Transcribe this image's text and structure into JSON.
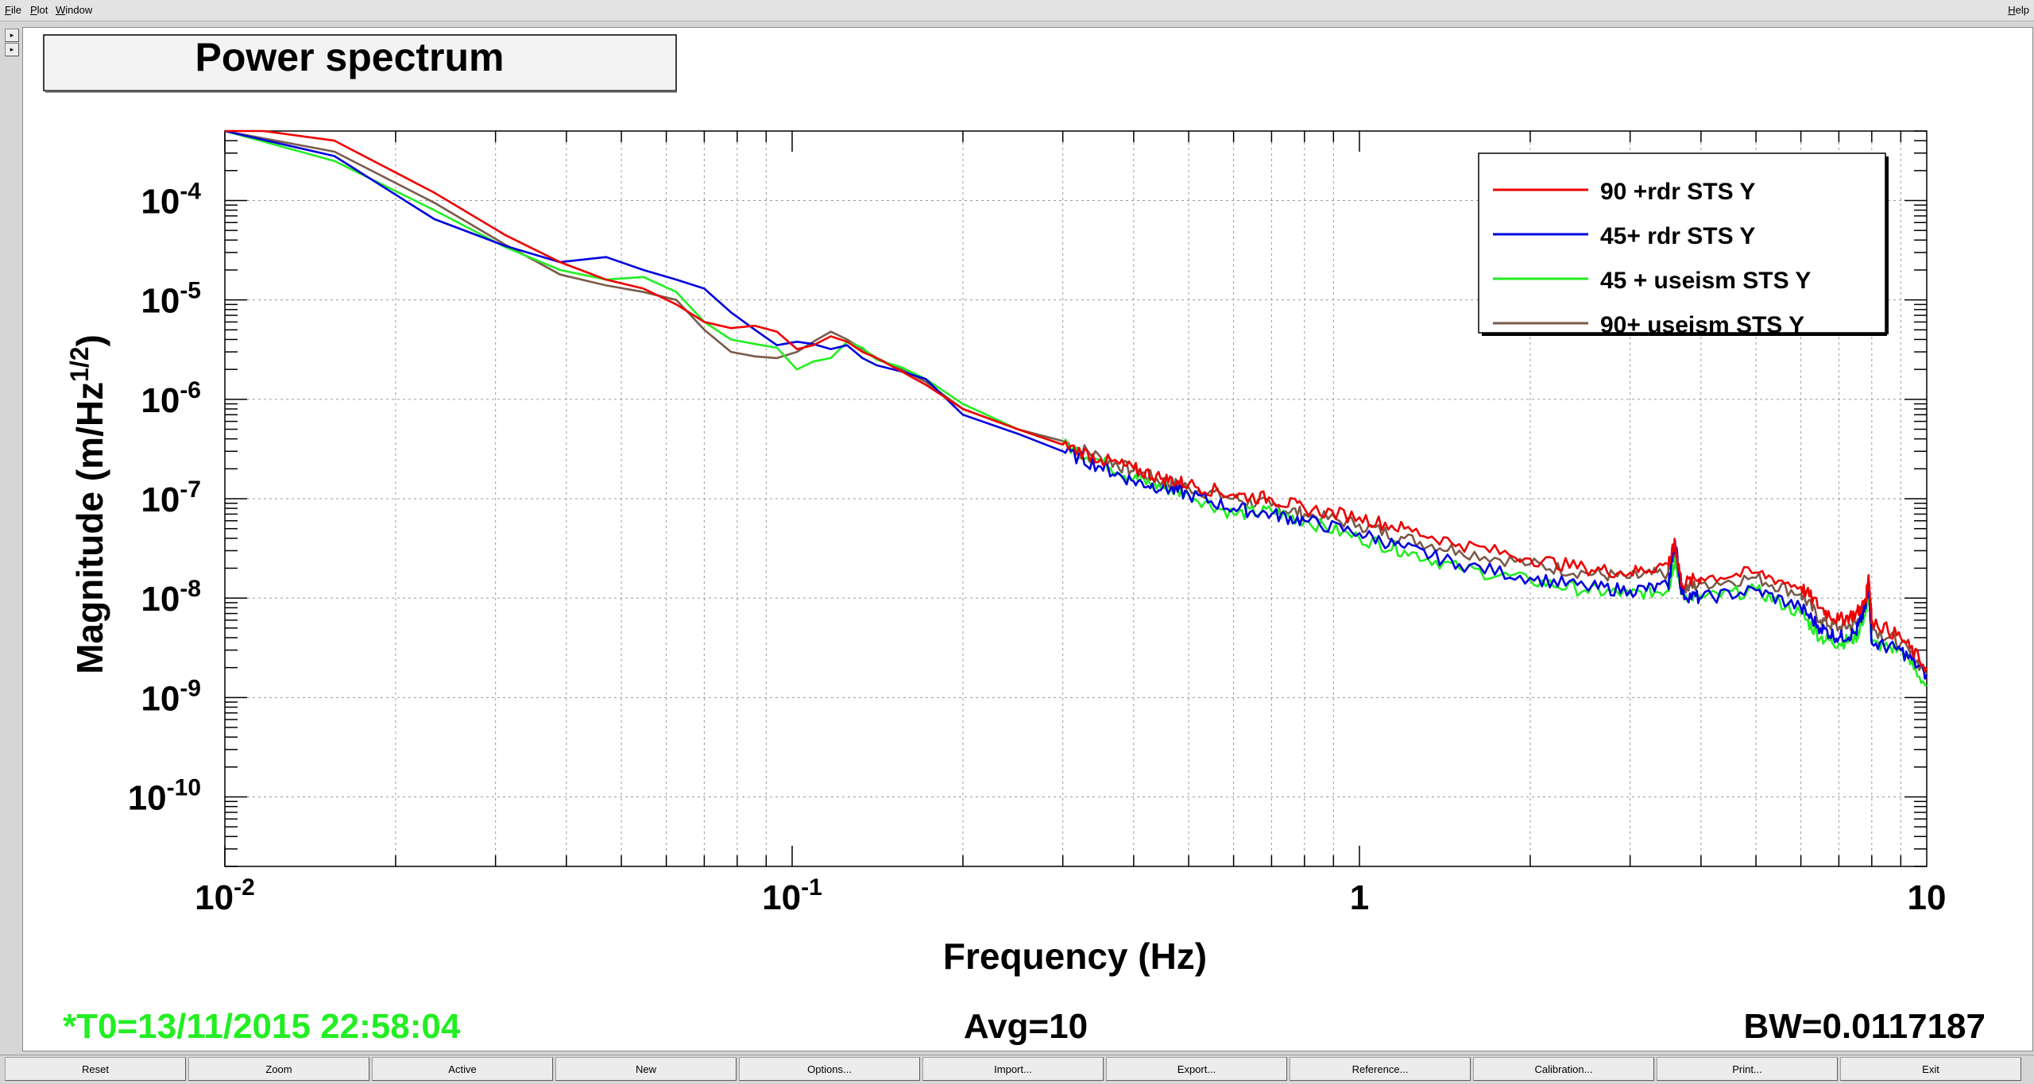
{
  "menubar": {
    "items": [
      "File",
      "Plot",
      "Window"
    ],
    "help": "Help"
  },
  "side_buttons": [
    "▸",
    "▸"
  ],
  "chart_title": "Power spectrum",
  "status": {
    "t0": "*T0=13/11/2015 22:58:04",
    "avg": "Avg=10",
    "bw": "BW=0.0117187"
  },
  "colors": {
    "status_green": "#22ee22",
    "series_red": "#ee0000",
    "series_blue": "#0000dd",
    "series_green": "#22ee22",
    "series_brown": "#7a5a4a"
  },
  "toolbar": {
    "buttons": [
      "Reset",
      "Zoom",
      "Active",
      "New",
      "Options...",
      "Import...",
      "Export...",
      "Reference...",
      "Calibration...",
      "Print...",
      "Exit"
    ]
  },
  "chart_data": {
    "type": "line",
    "title": "Power spectrum",
    "xlabel": "Frequency (Hz)",
    "ylabel_main": "Magnitude (m/Hz",
    "ylabel_sup": "1/2",
    "ylabel_close": ")",
    "x_scale": "log",
    "y_scale": "log",
    "xlim": [
      0.01,
      10
    ],
    "ylim": [
      2e-11,
      0.0005
    ],
    "x_ticks": [
      {
        "value": 0.01,
        "base": "10",
        "exp": "-2"
      },
      {
        "value": 0.1,
        "base": "10",
        "exp": "-1"
      },
      {
        "value": 1,
        "base": "1",
        "exp": ""
      },
      {
        "value": 10,
        "base": "10",
        "exp": ""
      }
    ],
    "y_ticks": [
      {
        "value": 0.0001,
        "base": "10",
        "exp": "-4"
      },
      {
        "value": 1e-05,
        "base": "10",
        "exp": "-5"
      },
      {
        "value": 1e-06,
        "base": "10",
        "exp": "-6"
      },
      {
        "value": 1e-07,
        "base": "10",
        "exp": "-7"
      },
      {
        "value": 1e-08,
        "base": "10",
        "exp": "-8"
      },
      {
        "value": 1e-09,
        "base": "10",
        "exp": "-9"
      },
      {
        "value": 1e-10,
        "base": "10",
        "exp": "-10"
      }
    ],
    "grid": true,
    "legend_position": "top-right",
    "series": [
      {
        "name": "90 +rdr STS Y",
        "color": "#ee0000",
        "x": [
          0.01,
          0.0117,
          0.0156,
          0.0234,
          0.0312,
          0.039,
          0.047,
          0.0547,
          0.0625,
          0.07,
          0.078,
          0.086,
          0.094,
          0.102,
          0.109,
          0.117,
          0.125,
          0.133,
          0.141,
          0.156,
          0.172,
          0.2,
          0.25,
          0.3,
          0.35,
          0.4,
          0.45,
          0.5,
          0.6,
          0.7,
          0.8,
          1,
          1.2,
          1.5,
          2,
          2.5,
          3,
          3.5,
          3.6,
          3.7,
          4,
          5,
          6,
          6.5,
          7,
          7.5,
          7.8,
          7.9,
          8,
          9,
          10
        ],
        "y": [
          0.0005,
          0.00052,
          0.0004,
          0.00012,
          4.5e-05,
          2.4e-05,
          1.6e-05,
          1.3e-05,
          9e-06,
          6e-06,
          5.2e-06,
          5.5e-06,
          4.8e-06,
          3.2e-06,
          3.5e-06,
          4.3e-06,
          3.8e-06,
          3e-06,
          2.6e-06,
          1.9e-06,
          1.4e-06,
          8e-07,
          5e-07,
          3.5e-07,
          2.5e-07,
          2e-07,
          1.6e-07,
          1.4e-07,
          1.1e-07,
          1e-07,
          8e-08,
          6.5e-08,
          5e-08,
          3.5e-08,
          2.5e-08,
          2e-08,
          1.8e-08,
          2.2e-08,
          3.5e-08,
          1.4e-08,
          1.6e-08,
          1.8e-08,
          1.3e-08,
          8e-09,
          6e-09,
          7e-09,
          9e-09,
          1.7e-08,
          6e-09,
          4e-09,
          2e-09
        ]
      },
      {
        "name": "45+ rdr STS Y",
        "color": "#0000dd",
        "x": [
          0.01,
          0.0156,
          0.0234,
          0.0312,
          0.039,
          0.047,
          0.0547,
          0.0625,
          0.07,
          0.078,
          0.086,
          0.094,
          0.102,
          0.109,
          0.117,
          0.125,
          0.133,
          0.141,
          0.156,
          0.172,
          0.2,
          0.25,
          0.3,
          0.35,
          0.4,
          0.45,
          0.5,
          0.6,
          0.7,
          0.8,
          1,
          1.2,
          1.5,
          2,
          2.5,
          3,
          3.5,
          3.6,
          3.7,
          4,
          5,
          6,
          6.5,
          7,
          7.5,
          7.8,
          7.9,
          8,
          9,
          10
        ],
        "y": [
          0.0005,
          0.00028,
          6.5e-05,
          3.5e-05,
          2.4e-05,
          2.7e-05,
          2e-05,
          1.6e-05,
          1.3e-05,
          7.5e-06,
          5e-06,
          3.5e-06,
          3.8e-06,
          3.6e-06,
          3.2e-06,
          3.5e-06,
          2.6e-06,
          2.2e-06,
          1.9e-06,
          1.6e-06,
          7e-07,
          4.5e-07,
          3e-07,
          2.1e-07,
          1.5e-07,
          1.3e-07,
          1.1e-07,
          8e-08,
          7e-08,
          6e-08,
          4.5e-08,
          3.2e-08,
          2.2e-08,
          1.6e-08,
          1.3e-08,
          1.2e-08,
          1.3e-08,
          3.8e-08,
          1.1e-08,
          1e-08,
          1.2e-08,
          8e-09,
          5e-09,
          4e-09,
          4.5e-09,
          8e-09,
          1.5e-08,
          3.5e-09,
          3e-09,
          1.7e-09
        ]
      },
      {
        "name": "45 + useism STS Y",
        "color": "#22ee22",
        "x": [
          0.01,
          0.0156,
          0.0234,
          0.0312,
          0.039,
          0.047,
          0.0547,
          0.0625,
          0.07,
          0.078,
          0.086,
          0.094,
          0.102,
          0.109,
          0.117,
          0.125,
          0.133,
          0.141,
          0.156,
          0.172,
          0.2,
          0.25,
          0.3,
          0.35,
          0.4,
          0.45,
          0.5,
          0.6,
          0.7,
          0.8,
          1,
          1.2,
          1.5,
          2,
          2.5,
          3,
          3.5,
          3.6,
          3.7,
          4,
          5,
          6,
          6.5,
          7,
          7.5,
          7.8,
          7.9,
          8,
          9,
          10
        ],
        "y": [
          0.0005,
          0.00025,
          8e-05,
          3.4e-05,
          2e-05,
          1.6e-05,
          1.7e-05,
          1.2e-05,
          6e-06,
          4e-06,
          3.6e-06,
          3.3e-06,
          2e-06,
          2.4e-06,
          2.6e-06,
          3.8e-06,
          3.3e-06,
          2.5e-06,
          2.1e-06,
          1.6e-06,
          9e-07,
          5e-07,
          3.5e-07,
          2.4e-07,
          1.6e-07,
          1.3e-07,
          1.1e-07,
          7e-08,
          7.5e-08,
          6e-08,
          4e-08,
          3e-08,
          2e-08,
          1.5e-08,
          1.2e-08,
          1.1e-08,
          1.2e-08,
          2.5e-08,
          1.1e-08,
          1e-08,
          1.2e-08,
          7e-09,
          4e-09,
          3.5e-09,
          4e-09,
          7e-09,
          1.2e-08,
          3.5e-09,
          3e-09,
          1.3e-09
        ]
      },
      {
        "name": "90+ useism STS Y",
        "color": "#7a5a4a",
        "x": [
          0.01,
          0.0156,
          0.0234,
          0.0312,
          0.039,
          0.047,
          0.0547,
          0.0625,
          0.07,
          0.078,
          0.086,
          0.094,
          0.102,
          0.109,
          0.117,
          0.125,
          0.133,
          0.141,
          0.156,
          0.172,
          0.2,
          0.25,
          0.3,
          0.35,
          0.4,
          0.45,
          0.5,
          0.6,
          0.7,
          0.8,
          1,
          1.2,
          1.5,
          2,
          2.5,
          3,
          3.5,
          3.6,
          3.7,
          4,
          5,
          6,
          6.5,
          7,
          7.5,
          7.8,
          7.9,
          8,
          9,
          10
        ],
        "y": [
          0.0005,
          0.00031,
          9.5e-05,
          3.6e-05,
          1.8e-05,
          1.4e-05,
          1.2e-05,
          1e-05,
          5e-06,
          3e-06,
          2.7e-06,
          2.6e-06,
          3e-06,
          3.8e-06,
          4.8e-06,
          4e-06,
          3.2e-06,
          2.6e-06,
          2e-06,
          1.5e-06,
          8e-07,
          5e-07,
          3.8e-07,
          2.6e-07,
          1.9e-07,
          1.5e-07,
          1.3e-07,
          1e-07,
          8.5e-08,
          7e-08,
          5.5e-08,
          4e-08,
          3e-08,
          2.2e-08,
          1.8e-08,
          1.6e-08,
          1.8e-08,
          3e-08,
          1.2e-08,
          1.4e-08,
          1.6e-08,
          1.1e-08,
          6e-09,
          5e-09,
          5.5e-09,
          8e-09,
          1.3e-08,
          5e-09,
          3.5e-09,
          1.8e-09
        ]
      }
    ]
  }
}
